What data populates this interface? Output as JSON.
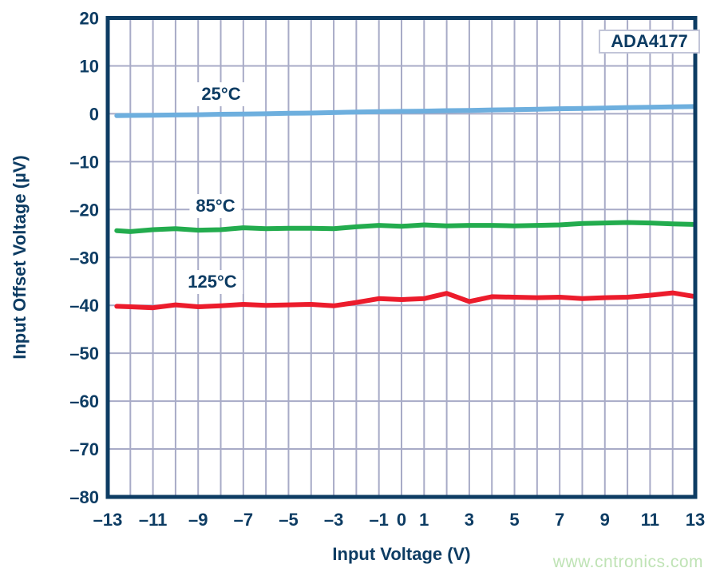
{
  "watermark": {
    "text": "www.cntronics.com",
    "color": "#bfe3b5"
  },
  "chart_data": {
    "type": "line",
    "part_label": "ADA4177",
    "xlabel": "Input Voltage (V)",
    "ylabel": "Input Offset Voltage (µV)",
    "xlim": [
      -13,
      13
    ],
    "ylim": [
      -80,
      20
    ],
    "grid": true,
    "x_grid_step": 1,
    "y_grid_step": 10,
    "legend_position": "inline-labels",
    "x_ticks": [
      {
        "v": -13,
        "label": "–13"
      },
      {
        "v": -11,
        "label": "–11"
      },
      {
        "v": -9,
        "label": "–9"
      },
      {
        "v": -7,
        "label": "–7"
      },
      {
        "v": -5,
        "label": "–5"
      },
      {
        "v": -3,
        "label": "–3"
      },
      {
        "v": -1,
        "label": "–1"
      },
      {
        "v": 0,
        "label": "0"
      },
      {
        "v": 1,
        "label": "1"
      },
      {
        "v": 3,
        "label": "3"
      },
      {
        "v": 5,
        "label": "5"
      },
      {
        "v": 7,
        "label": "7"
      },
      {
        "v": 9,
        "label": "9"
      },
      {
        "v": 11,
        "label": "11"
      },
      {
        "v": 13,
        "label": "13"
      }
    ],
    "y_ticks": [
      {
        "v": 20,
        "label": "20"
      },
      {
        "v": 10,
        "label": "10"
      },
      {
        "v": 0,
        "label": "0"
      },
      {
        "v": -10,
        "label": "–10"
      },
      {
        "v": -20,
        "label": "–20"
      },
      {
        "v": -30,
        "label": "–30"
      },
      {
        "v": -40,
        "label": "–40"
      },
      {
        "v": -50,
        "label": "–50"
      },
      {
        "v": -60,
        "label": "–60"
      },
      {
        "v": -70,
        "label": "–70"
      },
      {
        "v": -80,
        "label": "–80"
      }
    ],
    "x": [
      -12.6,
      -12,
      -11,
      -10,
      -9,
      -8,
      -7,
      -6,
      -5,
      -4,
      -3,
      -2,
      -1,
      0,
      1,
      2,
      3,
      4,
      5,
      6,
      7,
      8,
      9,
      10,
      11,
      12,
      12.9
    ],
    "series": [
      {
        "name": "25°C",
        "color": "#6eafde",
        "values": [
          -0.4,
          -0.35,
          -0.3,
          -0.25,
          -0.2,
          -0.1,
          -0.05,
          0.0,
          0.1,
          0.15,
          0.25,
          0.35,
          0.45,
          0.5,
          0.55,
          0.65,
          0.7,
          0.8,
          0.85,
          0.95,
          1.05,
          1.1,
          1.2,
          1.3,
          1.35,
          1.45,
          1.5
        ]
      },
      {
        "name": "85°C",
        "color": "#23ac4e",
        "values": [
          -24.4,
          -24.6,
          -24.2,
          -24.0,
          -24.3,
          -24.2,
          -23.8,
          -24.0,
          -23.9,
          -23.9,
          -24.0,
          -23.6,
          -23.3,
          -23.5,
          -23.2,
          -23.4,
          -23.3,
          -23.3,
          -23.4,
          -23.3,
          -23.2,
          -22.9,
          -22.8,
          -22.7,
          -22.8,
          -23.0,
          -23.1
        ]
      },
      {
        "name": "125°C",
        "color": "#ec1c2c",
        "values": [
          -40.2,
          -40.3,
          -40.5,
          -39.9,
          -40.3,
          -40.1,
          -39.8,
          -40.0,
          -39.9,
          -39.8,
          -40.1,
          -39.4,
          -38.6,
          -38.8,
          -38.6,
          -37.5,
          -39.2,
          -38.2,
          -38.3,
          -38.4,
          -38.3,
          -38.6,
          -38.4,
          -38.3,
          -37.9,
          -37.4,
          -38.1
        ]
      }
    ],
    "colors": {
      "axis": "#0d3c63",
      "grid": "#a8abc7",
      "background": "#ffffff"
    }
  }
}
